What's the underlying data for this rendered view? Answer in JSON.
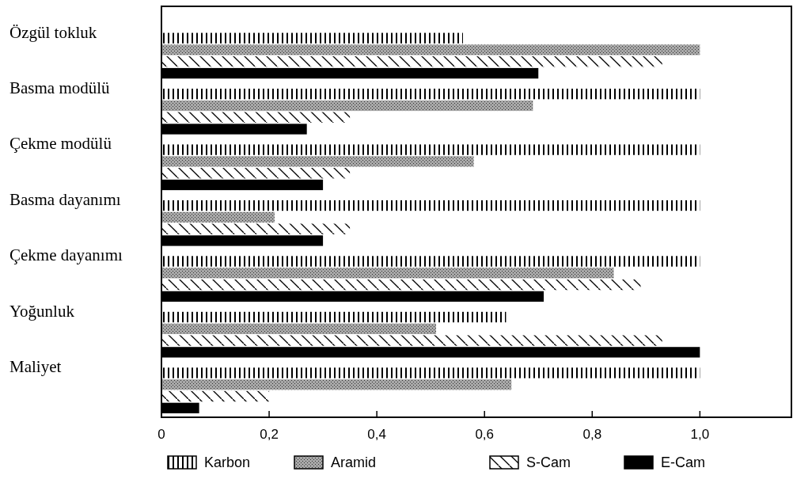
{
  "chart_data": {
    "type": "bar",
    "orientation": "horizontal",
    "categories": [
      "Özgül tokluk",
      "Basma modülü",
      "Çekme modülü",
      "Basma dayanımı",
      "Çekme dayanımı",
      "Yoğunluk",
      "Maliyet"
    ],
    "series": [
      {
        "name": "Karbon",
        "color": "#ffffff",
        "values": [
          0.56,
          1.0,
          1.0,
          1.0,
          1.0,
          0.64,
          1.0
        ]
      },
      {
        "name": "Aramid",
        "color": "#a8a8a8",
        "values": [
          1.0,
          0.69,
          0.58,
          0.21,
          0.84,
          0.51,
          0.65
        ]
      },
      {
        "name": "S-Cam",
        "color": "#ffffff",
        "values": [
          0.93,
          0.35,
          0.35,
          0.35,
          0.89,
          0.93,
          0.2
        ]
      },
      {
        "name": "E-Cam",
        "color": "#000000",
        "values": [
          0.7,
          0.27,
          0.3,
          0.3,
          0.71,
          1.0,
          0.07
        ]
      }
    ],
    "xlim": [
      0,
      1.17
    ],
    "xticks": [
      0,
      {
        "value": 0.2,
        "label": "0,2"
      },
      {
        "value": 0.4,
        "label": "0,4"
      },
      {
        "value": 0.6,
        "label": "0,6"
      },
      {
        "value": 0.8,
        "label": "0,8"
      },
      {
        "value": 1.0,
        "label": "1,0"
      }
    ],
    "grid": false,
    "legend": "bottom"
  }
}
